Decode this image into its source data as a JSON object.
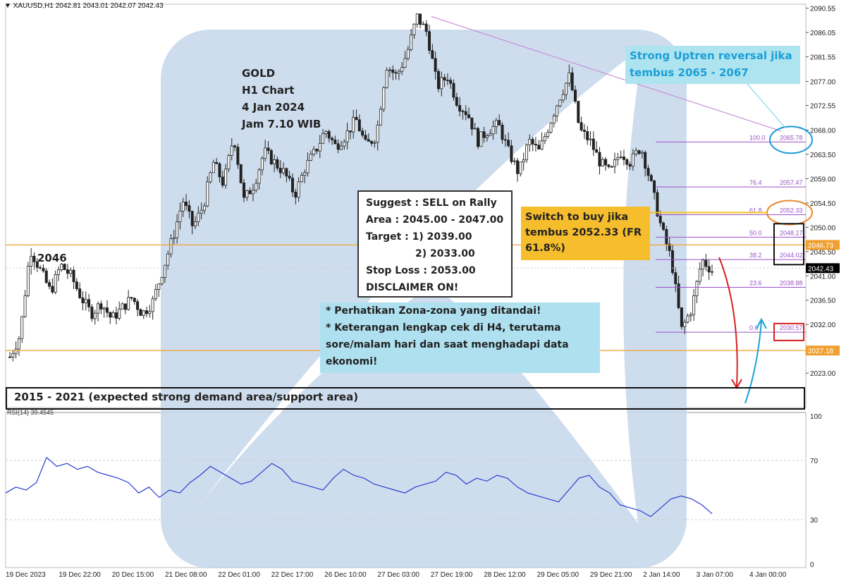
{
  "header": {
    "symbol": "XAUUSD,H1",
    "ohlc": "2042.81 2043.01 2042.07 2042.43"
  },
  "chart_data": {
    "type": "candlestick",
    "symbol": "XAUUSD",
    "timeframe": "H1",
    "ylim": [
      2019.5,
      2090.5
    ],
    "y_ticks": [
      "2090.55",
      "2086.05",
      "2081.55",
      "2077.00",
      "2072.55",
      "2068.00",
      "2063.50",
      "2059.00",
      "2054.50",
      "2050.00",
      "2045.50",
      "2041.00",
      "2036.50",
      "2032.00",
      "2027.50",
      "2023.00"
    ],
    "x_ticks": [
      "19 Dec 2023",
      "19 Dec 22:00",
      "20 Dec 15:00",
      "21 Dec 08:00",
      "22 Dec 01:00",
      "22 Dec 17:00",
      "26 Dec 10:00",
      "27 Dec 03:00",
      "27 Dec 19:00",
      "28 Dec 12:00",
      "29 Dec 05:00",
      "29 Dec 21:00",
      "2 Jan 14:00",
      "3 Jan 07:00",
      "4 Jan 00:00"
    ],
    "last_price": "2042.43",
    "price_path": [
      2026,
      2030,
      2046,
      2042,
      2038,
      2043,
      2041,
      2037,
      2034,
      2036,
      2033,
      2035,
      2037,
      2034,
      2036,
      2042,
      2048,
      2055,
      2050,
      2054,
      2062,
      2058,
      2067,
      2055,
      2058,
      2064,
      2062,
      2060,
      2056,
      2061,
      2064,
      2068,
      2065,
      2067,
      2070,
      2065,
      2067,
      2080,
      2078,
      2082,
      2089,
      2086,
      2076,
      2078,
      2073,
      2071,
      2066,
      2068,
      2069,
      2064,
      2060,
      2066,
      2064,
      2069,
      2074,
      2078,
      2068,
      2066,
      2062,
      2060,
      2064,
      2062,
      2065,
      2058,
      2050,
      2044,
      2031,
      2035,
      2044,
      2042
    ],
    "horizontal_levels": [
      {
        "price": 2046.73,
        "label": "2046.73",
        "color": "#f0a030"
      },
      {
        "price": 2027.18,
        "label": "2027.18",
        "color": "#f0a030"
      },
      {
        "price": 2042.43,
        "label": "2042.43",
        "color": "#000000"
      }
    ],
    "fibonacci": {
      "color": "#9b51c9",
      "levels": [
        {
          "ratio": "100.0",
          "price": "2065.78"
        },
        {
          "ratio": "76.4",
          "price": "2057.47"
        },
        {
          "ratio": "61.8",
          "price": "2052.33"
        },
        {
          "ratio": "50.0",
          "price": "2048.17"
        },
        {
          "ratio": "38.2",
          "price": "2044.02"
        },
        {
          "ratio": "23.6",
          "price": "2038.88"
        },
        {
          "ratio": "0.0",
          "price": "2030.57"
        }
      ]
    },
    "rsi": {
      "label": "RSI(14) 39.4545",
      "ylim": [
        0,
        100
      ],
      "y_ticks": [
        "100",
        "70",
        "30",
        "0"
      ],
      "values": [
        48,
        52,
        50,
        55,
        72,
        66,
        68,
        64,
        66,
        62,
        60,
        58,
        55,
        48,
        52,
        45,
        50,
        48,
        55,
        60,
        66,
        62,
        58,
        54,
        56,
        62,
        68,
        64,
        56,
        54,
        52,
        50,
        58,
        64,
        60,
        58,
        54,
        52,
        50,
        48,
        52,
        54,
        56,
        62,
        60,
        54,
        58,
        56,
        60,
        58,
        52,
        48,
        46,
        44,
        42,
        50,
        58,
        60,
        52,
        48,
        40,
        38,
        36,
        32,
        38,
        44,
        46,
        44,
        40,
        34
      ]
    }
  },
  "annotations": {
    "gold_title": [
      "GOLD",
      "H1 Chart",
      "4 Jan 2024",
      "Jam 7.10 WIB"
    ],
    "label_2046": "2046",
    "suggest": {
      "line1": "Suggest : SELL on Rally",
      "line2": "Area : 2045.00 - 2047.00",
      "line3": "Target : 1) 2039.00",
      "line4": "2) 2033.00",
      "line5": "Stop Loss : 2053.00",
      "line6": "DISCLAIMER ON!"
    },
    "switch_buy": "Switch to buy jika tembus 2052.33 (FR 61.8%)",
    "uptrend": "Strong Uptren reversal jika tembus 2065 - 2067",
    "notes": {
      "line1": "* Perhatikan Zona-zona yang ditandai!",
      "line2": "* Keterangan lengkap cek di H4, terutama sore/malam hari dan saat menghadapi data ekonomi!"
    },
    "demand": "2015 - 2021 (expected strong demand area/support area)"
  },
  "colors": {
    "candle": "#222222",
    "rsi_line": "#2b3fcf",
    "watermark": "#c5d7ea",
    "trendline": "#c890d8",
    "orange_level": "#f0a030",
    "red_arrow": "#d62020",
    "blue_arrow": "#1aa3d6",
    "fib_purple": "#9b51c9"
  }
}
